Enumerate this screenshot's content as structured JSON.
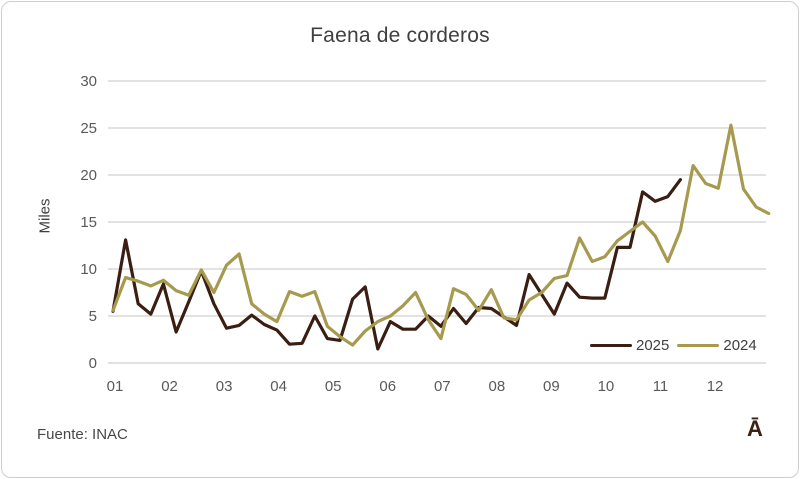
{
  "title": "Faena de corderos",
  "source": "Fuente: INAC",
  "logo_glyph": "Ā",
  "colors": {
    "series_2025": "#3B1E12",
    "series_2024": "#A69A4E",
    "grid": "#D9D9D9",
    "tick_text": "#595959",
    "title_text": "#3F3F3F",
    "frame_border": "#CFCDCD",
    "background": "#FFFFFF"
  },
  "legend": {
    "items": [
      {
        "label": "2025",
        "color": "#3B1E12"
      },
      {
        "label": "2024",
        "color": "#A69A4E"
      }
    ]
  },
  "chart_data": {
    "type": "line",
    "title": "Faena de corderos",
    "ylabel": "Miles",
    "xlabel": "",
    "ylim": [
      0,
      30
    ],
    "yticks": [
      0,
      5,
      10,
      15,
      20,
      25,
      30
    ],
    "xticklabels": [
      "01",
      "02",
      "03",
      "04",
      "05",
      "06",
      "07",
      "08",
      "09",
      "10",
      "11",
      "12"
    ],
    "x_unit": "week-of-year",
    "grid": "horizontal",
    "legend_position": "inside-bottom-right",
    "series": [
      {
        "name": "2025",
        "color": "#3B1E12",
        "values": [
          5.5,
          13.1,
          6.3,
          5.2,
          8.4,
          3.3,
          6.5,
          9.8,
          6.3,
          3.7,
          4.0,
          5.1,
          4.1,
          3.5,
          2.0,
          2.1,
          5.0,
          2.6,
          2.4,
          6.8,
          8.1,
          1.5,
          4.4,
          3.6,
          3.6,
          5.0,
          3.9,
          5.8,
          4.2,
          5.9,
          5.8,
          4.9,
          4.0,
          9.4,
          7.3,
          5.2,
          8.5,
          7.0,
          6.9,
          6.9,
          12.3,
          12.3,
          18.2,
          17.2,
          17.7,
          19.5
        ]
      },
      {
        "name": "2024",
        "color": "#A69A4E",
        "values": [
          5.6,
          9.1,
          8.7,
          8.2,
          8.8,
          7.7,
          7.2,
          9.9,
          7.5,
          10.4,
          11.6,
          6.3,
          5.2,
          4.4,
          7.6,
          7.1,
          7.6,
          3.9,
          2.8,
          1.9,
          3.4,
          4.4,
          5.0,
          6.1,
          7.5,
          4.6,
          2.6,
          7.9,
          7.3,
          5.6,
          7.8,
          4.8,
          4.6,
          6.7,
          7.5,
          9.0,
          9.3,
          13.3,
          10.8,
          11.3,
          13.0,
          14.0,
          15.0,
          13.5,
          10.8,
          14.1,
          21.0,
          19.1,
          18.6,
          25.3,
          18.5,
          16.6,
          15.9
        ]
      }
    ]
  }
}
